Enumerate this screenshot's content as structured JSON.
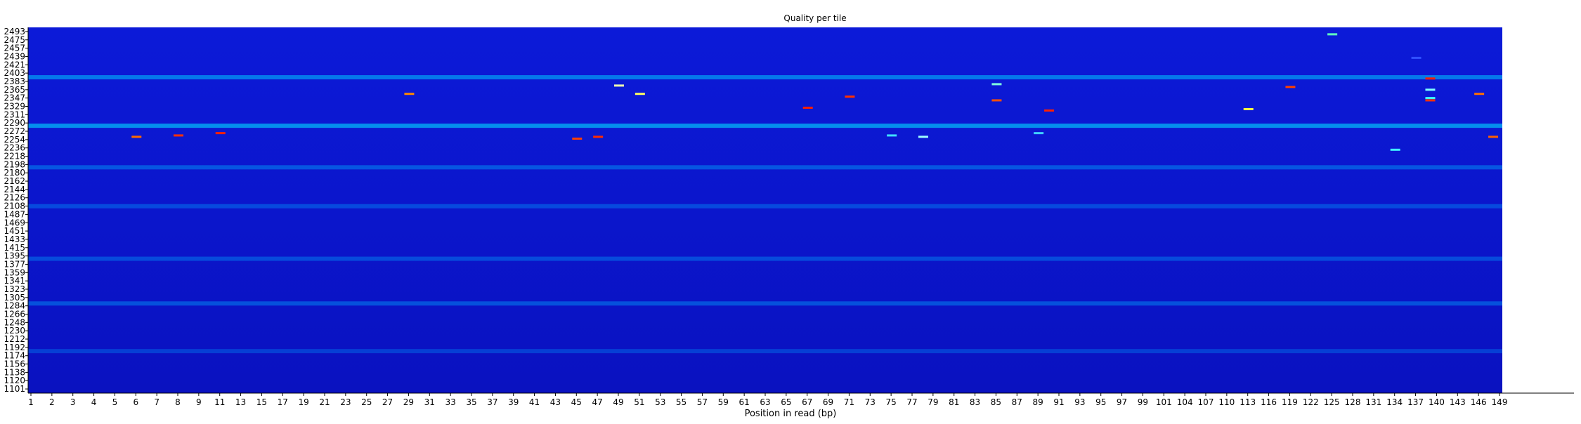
{
  "chart_data": {
    "type": "heatmap",
    "title": "Quality per tile",
    "xlabel": "Position in read (bp)",
    "ylabel": "",
    "x_ticks": [
      "1",
      "2",
      "3",
      "4",
      "5",
      "6",
      "7",
      "8",
      "9",
      "11",
      "13",
      "15",
      "17",
      "19",
      "21",
      "23",
      "25",
      "27",
      "29",
      "31",
      "33",
      "35",
      "37",
      "39",
      "41",
      "43",
      "45",
      "47",
      "49",
      "51",
      "53",
      "55",
      "57",
      "59",
      "61",
      "63",
      "65",
      "67",
      "69",
      "71",
      "73",
      "75",
      "77",
      "79",
      "81",
      "83",
      "85",
      "87",
      "89",
      "91",
      "93",
      "95",
      "97",
      "99",
      "101",
      "104",
      "107",
      "110",
      "113",
      "116",
      "119",
      "122",
      "125",
      "128",
      "131",
      "134",
      "137",
      "140",
      "143",
      "146",
      "149"
    ],
    "y_ticks": [
      "2493",
      "2475",
      "2457",
      "2439",
      "2421",
      "2403",
      "2383",
      "2365",
      "2347",
      "2329",
      "2311",
      "2290",
      "2272",
      "2254",
      "2236",
      "2218",
      "2198",
      "2180",
      "2162",
      "2144",
      "2126",
      "2108",
      "1487",
      "1469",
      "1451",
      "1433",
      "1415",
      "1395",
      "1377",
      "1359",
      "1341",
      "1323",
      "1305",
      "1284",
      "1266",
      "1248",
      "1230",
      "1212",
      "1192",
      "1174",
      "1156",
      "1138",
      "1120",
      "1101"
    ],
    "background_color": "#0a14c8",
    "color_scale": [
      "#0000c8",
      "#00ffff",
      "#ffff00",
      "#ff0000"
    ],
    "bands": [
      {
        "tile": "2393",
        "x_range": [
          "1",
          "149"
        ],
        "intensity": 0.55
      },
      {
        "tile": "2284",
        "x_range": [
          "1",
          "149"
        ],
        "intensity": 0.7
      },
      {
        "tile": "2192",
        "x_range": [
          "1",
          "149"
        ],
        "intensity": 0.3
      },
      {
        "tile": "2098",
        "x_range": [
          "1",
          "149"
        ],
        "intensity": 0.2
      },
      {
        "tile": "1389",
        "x_range": [
          "1",
          "149"
        ],
        "intensity": 0.22
      },
      {
        "tile": "1290",
        "x_range": [
          "1",
          "149"
        ],
        "intensity": 0.28
      },
      {
        "tile": "1184",
        "x_range": [
          "1",
          "149"
        ],
        "intensity": 0.12
      }
    ],
    "cells": [
      {
        "x": "6",
        "tile": "2260",
        "color": "#ff6a00"
      },
      {
        "x": "8",
        "tile": "2263",
        "color": "#ff3000"
      },
      {
        "x": "11",
        "tile": "2268",
        "color": "#ff2000"
      },
      {
        "x": "29",
        "tile": "2356",
        "color": "#ff8a00"
      },
      {
        "x": "45",
        "tile": "2256",
        "color": "#ff4000"
      },
      {
        "x": "47",
        "tile": "2260",
        "color": "#ff2a00"
      },
      {
        "x": "49",
        "tile": "2374",
        "color": "#f0ffb0"
      },
      {
        "x": "51",
        "tile": "2356",
        "color": "#ffff60"
      },
      {
        "x": "67",
        "tile": "2326",
        "color": "#ff2000"
      },
      {
        "x": "71",
        "tile": "2350",
        "color": "#ff3000"
      },
      {
        "x": "75",
        "tile": "2263",
        "color": "#40e0ff"
      },
      {
        "x": "78",
        "tile": "2260",
        "color": "#a0ffff"
      },
      {
        "x": "85",
        "tile": "2377",
        "color": "#80ffe0"
      },
      {
        "x": "85",
        "tile": "2342",
        "color": "#ff5000"
      },
      {
        "x": "89",
        "tile": "2268",
        "color": "#40d0ff"
      },
      {
        "x": "90",
        "tile": "2320",
        "color": "#ff2000"
      },
      {
        "x": "113",
        "tile": "2323",
        "color": "#ffff40"
      },
      {
        "x": "119",
        "tile": "2371",
        "color": "#ff4000"
      },
      {
        "x": "125",
        "tile": "2487",
        "color": "#60ffc0"
      },
      {
        "x": "134",
        "tile": "2232",
        "color": "#40f0ff"
      },
      {
        "x": "137",
        "tile": "2436",
        "color": "#3050ff"
      },
      {
        "x": "139",
        "tile": "2390",
        "color": "#ff2000"
      },
      {
        "x": "139",
        "tile": "2365",
        "color": "#80ffff"
      },
      {
        "x": "139",
        "tile": "2347",
        "color": "#40ffff"
      },
      {
        "x": "139",
        "tile": "2342",
        "color": "#ff3000"
      },
      {
        "x": "146",
        "tile": "2356",
        "color": "#ff7000"
      },
      {
        "x": "148",
        "tile": "2260",
        "color": "#ff6000"
      }
    ],
    "legend": "none",
    "grid": false
  }
}
